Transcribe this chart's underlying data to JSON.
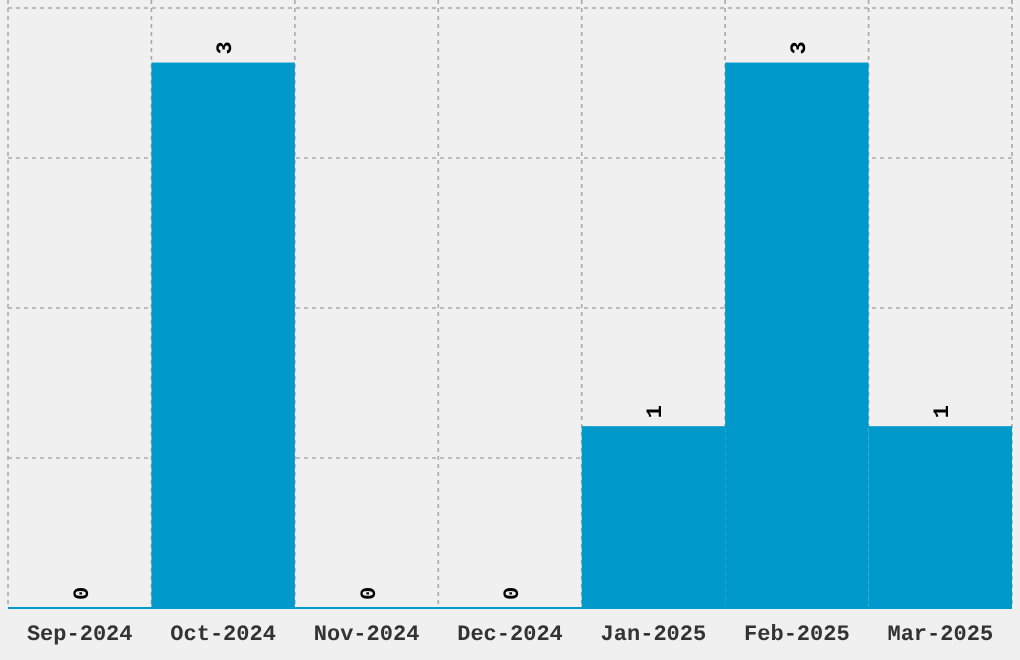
{
  "chart_data": {
    "type": "bar",
    "categories": [
      "Sep-2024",
      "Oct-2024",
      "Nov-2024",
      "Dec-2024",
      "Jan-2025",
      "Feb-2025",
      "Mar-2025"
    ],
    "values": [
      0,
      3,
      0,
      0,
      1,
      3,
      1
    ],
    "color": "#0099cc",
    "ylim": [
      0,
      3.3
    ],
    "yticks": [
      {
        "value": 0,
        "label": null
      },
      {
        "value": 0.825,
        "label": null
      },
      {
        "value": 1.65,
        "label": null
      },
      {
        "value": 2.475,
        "label": null
      },
      {
        "value": 3.3,
        "label": null
      }
    ],
    "grid": true,
    "tick_labels": "x",
    "data_labels": true
  }
}
